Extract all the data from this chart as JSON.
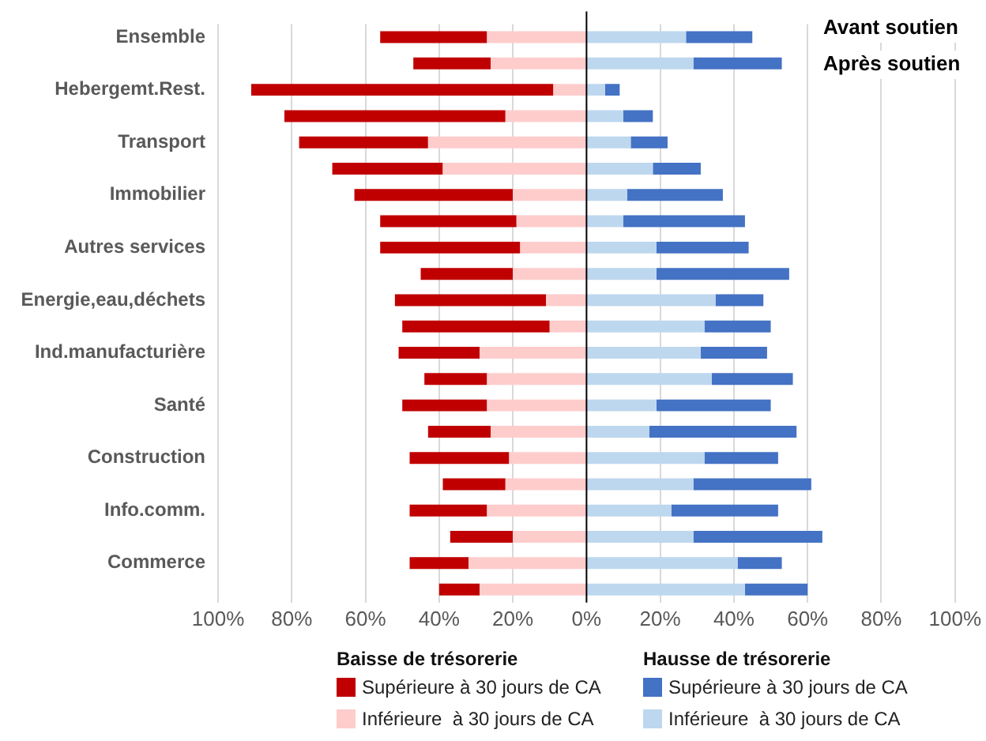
{
  "chart_data": {
    "type": "bar",
    "orientation": "horizontal",
    "stacked": true,
    "categories": [
      "Ensemble",
      null,
      "Hebergemt.Rest.",
      null,
      "Transport",
      null,
      "Immobilier",
      null,
      "Autres services",
      null,
      "Energie,eau,déchets",
      null,
      "Ind.manufacturière",
      null,
      "Santé",
      null,
      "Construction",
      null,
      "Info.comm.",
      null,
      "Commerce",
      null
    ],
    "series": [
      {
        "name": "Inférieure  à 30 jours de CA",
        "color": "#ffcccc",
        "values": [
          -27,
          -26,
          -9,
          -22,
          -43,
          -39,
          -20,
          -19,
          -18,
          -20,
          -11,
          -10,
          -29,
          -27,
          -27,
          -26,
          -21,
          -22,
          -27,
          -20,
          -32,
          -29
        ]
      },
      {
        "name": "Supérieure à 30 jours de CA",
        "color": "#c00000",
        "values": [
          -29,
          -21,
          -82,
          -60,
          -35,
          -30,
          -43,
          -37,
          -38,
          -25,
          -41,
          -40,
          -22,
          -17,
          -23,
          -17,
          -27,
          -17,
          -21,
          -17,
          -16,
          -11
        ]
      },
      {
        "name": "Inférieure  à 30 jours de CA",
        "color": "#bdd7ee",
        "values": [
          27,
          29,
          5,
          10,
          12,
          18,
          11,
          10,
          19,
          19,
          35,
          32,
          31,
          34,
          19,
          17,
          32,
          29,
          23,
          29,
          41,
          43
        ]
      },
      {
        "name": "Supérieure à 30 jours de CA",
        "color": "#4472c4",
        "values": [
          18,
          24,
          4,
          8,
          10,
          13,
          26,
          33,
          25,
          36,
          13,
          18,
          18,
          22,
          31,
          40,
          20,
          32,
          29,
          35,
          12,
          17
        ]
      }
    ],
    "xlim": [
      -100,
      100
    ],
    "xticks": [
      {
        "value": -100,
        "label": "100%"
      },
      {
        "value": -80,
        "label": "80%"
      },
      {
        "value": -60,
        "label": "60%"
      },
      {
        "value": -40,
        "label": "40%"
      },
      {
        "value": -20,
        "label": "20%"
      },
      {
        "value": 0,
        "label": "0%"
      },
      {
        "value": 20,
        "label": "20%"
      },
      {
        "value": 40,
        "label": "40%"
      },
      {
        "value": 60,
        "label": "60%"
      },
      {
        "value": 80,
        "label": "80%"
      },
      {
        "value": 100,
        "label": "100%"
      }
    ],
    "grid": "x",
    "legend": "bottom",
    "annotations": [
      "Avant soutien",
      "Après soutien",
      "Baisse de trésorerie",
      "Hausse de trésorerie"
    ]
  }
}
